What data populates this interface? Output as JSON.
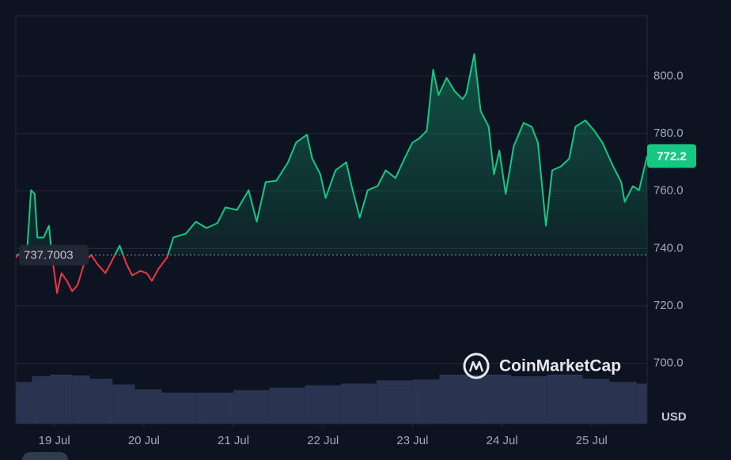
{
  "chart_data": {
    "type": "line",
    "watermark": "CoinMarketCap",
    "currency_label": "USD",
    "baseline": 737.7003,
    "xlim": [
      18.57,
      25.62
    ],
    "xticks": [
      {
        "value": 19,
        "label": "19 Jul"
      },
      {
        "value": 20,
        "label": "20 Jul"
      },
      {
        "value": 21,
        "label": "21 Jul"
      },
      {
        "value": 22,
        "label": "22 Jul"
      },
      {
        "value": 23,
        "label": "23 Jul"
      },
      {
        "value": 24,
        "label": "24 Jul"
      },
      {
        "value": 25,
        "label": "25 Jul"
      }
    ],
    "ylim": [
      679,
      821
    ],
    "yticks": [
      {
        "value": 700,
        "label": "700.0"
      },
      {
        "value": 720,
        "label": "720.0"
      },
      {
        "value": 740,
        "label": "740.0"
      },
      {
        "value": 760,
        "label": "760.0"
      },
      {
        "value": 780,
        "label": "780.0"
      },
      {
        "value": 800,
        "label": "800.0"
      }
    ],
    "grid": true,
    "up_color": "#16c784",
    "down_color": "#ea3943",
    "series": [
      {
        "x": [
          18.57,
          18.7,
          18.74,
          18.78,
          18.81,
          18.88,
          18.94,
          18.97,
          19.03,
          19.08,
          19.14,
          19.2,
          19.26,
          19.34,
          19.41,
          19.49,
          19.57,
          19.64,
          19.73,
          19.8,
          19.87,
          19.96,
          20.03,
          20.09,
          20.16,
          20.26,
          20.33,
          20.47,
          20.58,
          20.7,
          20.82,
          20.91,
          21.04,
          21.17,
          21.26,
          21.36,
          21.48,
          21.61,
          21.7,
          21.82,
          21.88,
          21.97,
          22.03,
          22.14,
          22.26,
          22.32,
          22.41,
          22.5,
          22.61,
          22.7,
          22.81,
          22.91,
          23.0,
          23.07,
          23.16,
          23.23,
          23.29,
          23.38,
          23.47,
          23.56,
          23.6,
          23.69,
          23.76,
          23.85,
          23.91,
          23.97,
          24.04,
          24.13,
          24.24,
          24.33,
          24.4,
          24.49,
          24.56,
          24.66,
          24.75,
          24.82,
          24.93,
          25.03,
          25.12,
          25.24,
          25.33,
          25.37,
          25.46,
          25.53,
          25.62
        ],
        "values": [
          736.9,
          741.0,
          760.3,
          759.0,
          743.8,
          743.8,
          747.9,
          738.3,
          724.5,
          731.4,
          728.7,
          725.1,
          727.3,
          735.5,
          737.7,
          734.2,
          731.4,
          735.5,
          741.0,
          735.0,
          730.6,
          732.2,
          731.4,
          728.7,
          732.8,
          736.9,
          743.8,
          745.2,
          749.3,
          747.1,
          748.8,
          754.3,
          753.4,
          760.3,
          749.3,
          763.1,
          763.6,
          770.0,
          776.9,
          779.6,
          771.3,
          765.8,
          757.6,
          767.2,
          770.0,
          761.7,
          750.7,
          760.3,
          761.7,
          767.2,
          764.5,
          771.3,
          776.9,
          778.2,
          781.0,
          802.2,
          793.4,
          799.4,
          794.8,
          792.0,
          793.9,
          807.7,
          787.9,
          782.4,
          765.8,
          774.1,
          759.0,
          775.5,
          783.7,
          782.4,
          776.9,
          747.9,
          767.2,
          768.6,
          771.3,
          782.4,
          784.6,
          781.0,
          776.9,
          768.6,
          763.1,
          756.2,
          761.7,
          760.3,
          772.2
        ]
      }
    ],
    "volume": {
      "color": "#2a3350",
      "x": [
        18.57,
        18.75,
        18.95,
        19.2,
        19.4,
        19.65,
        19.9,
        20.2,
        20.6,
        21.0,
        21.4,
        21.8,
        22.2,
        22.6,
        23.0,
        23.3,
        23.7,
        24.1,
        24.5,
        24.9,
        25.2,
        25.5
      ],
      "values": [
        51,
        58,
        60,
        59,
        55,
        48,
        42,
        38,
        38,
        41,
        44,
        47,
        49,
        53,
        54,
        60,
        60,
        58,
        60,
        55,
        51,
        49
      ]
    }
  }
}
